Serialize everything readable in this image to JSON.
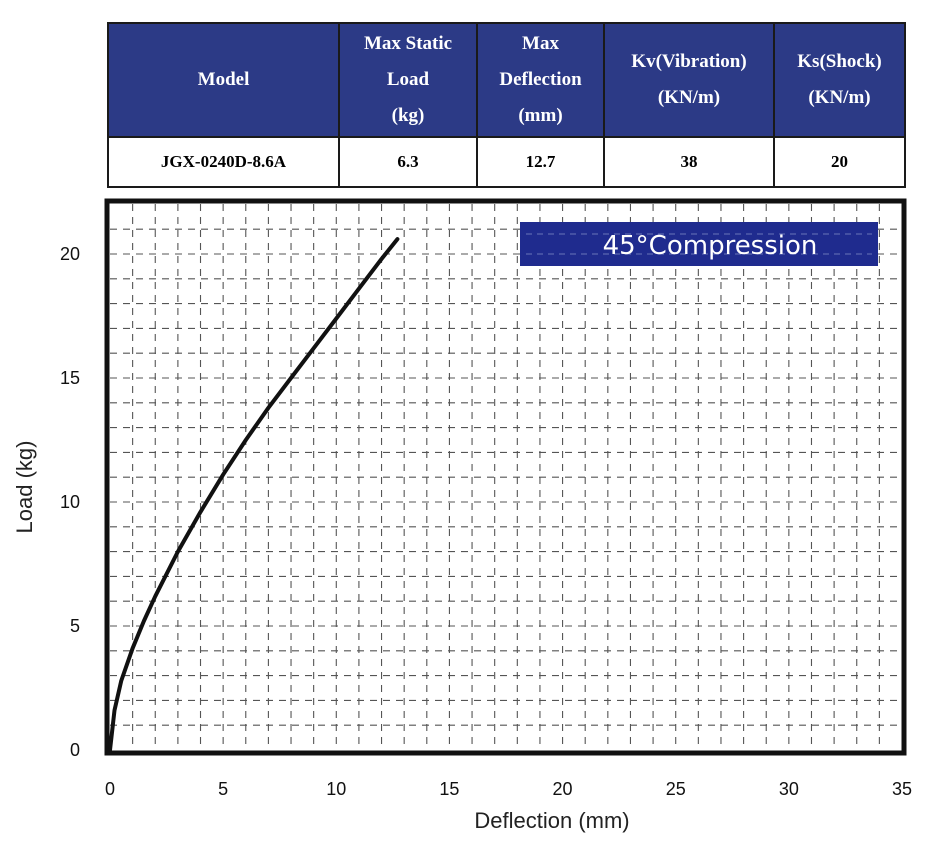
{
  "table": {
    "headers": [
      "Model",
      "Max Static\nLoad\n(kg)",
      "Max\nDeflection\n(mm)",
      "Kv(Vibration)\n(KN/m)",
      "Ks(Shock)\n(KN/m)"
    ],
    "row": [
      "JGX-0240D-8.6A",
      "6.3",
      "12.7",
      "38",
      "20"
    ]
  },
  "chart_data": {
    "type": "line",
    "title": "",
    "annotation": "45°Compression",
    "xlabel": "Deflection (mm)",
    "ylabel": "Load (kg)",
    "xlim": [
      0,
      35
    ],
    "ylim": [
      0,
      22
    ],
    "x_ticks": [
      0,
      5,
      10,
      15,
      20,
      25,
      30,
      35
    ],
    "y_ticks": [
      0,
      5,
      10,
      15,
      20
    ],
    "grid": true,
    "series": [
      {
        "name": "45°Compression",
        "x": [
          0,
          0.2,
          0.5,
          1,
          1.5,
          2,
          3,
          4,
          5,
          6,
          7,
          8,
          9,
          10,
          11,
          12,
          12.7
        ],
        "y": [
          0,
          1.6,
          2.8,
          4.1,
          5.2,
          6.2,
          8.0,
          9.6,
          11.1,
          12.5,
          13.8,
          15.0,
          16.2,
          17.4,
          18.6,
          19.8,
          20.6
        ]
      }
    ],
    "colors": {
      "line": "#111111",
      "annotation_bg": "#1f2b8e",
      "grid": "#555555"
    }
  }
}
